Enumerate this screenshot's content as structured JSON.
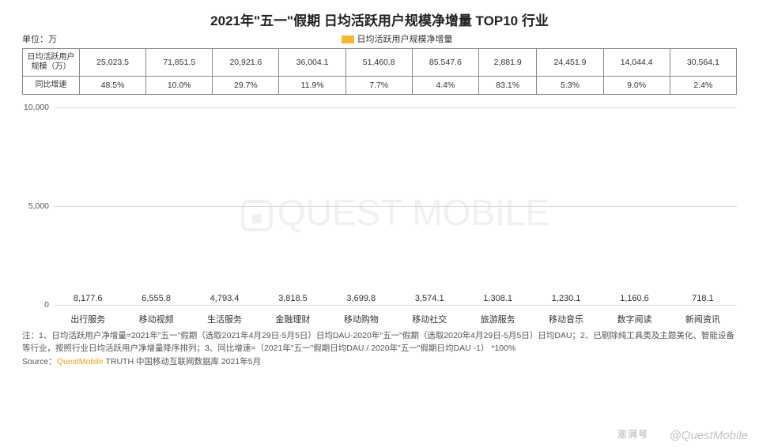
{
  "title": "2021年\"五一\"假期 日均活跃用户规模净增量 TOP10 行业",
  "unit_label": "单位：万",
  "legend_label": "日均活跃用户规模净增量",
  "table": {
    "row1_label": "日均活跃用户规模（万）",
    "row2_label": "同比增速",
    "row1": [
      "25,023.5",
      "71,851.5",
      "20,921.6",
      "36,004.1",
      "51,460.8",
      "85,547.6",
      "2,881.9",
      "24,451.9",
      "14,044.4",
      "30,564.1"
    ],
    "row2": [
      "48.5%",
      "10.0%",
      "29.7%",
      "11.9%",
      "7.7%",
      "4.4%",
      "83.1%",
      "5.3%",
      "9.0%",
      "2.4%"
    ],
    "row2_highlight_idx": [
      0,
      6
    ]
  },
  "chart": {
    "type": "bar",
    "categories": [
      "出行服务",
      "移动视频",
      "生活服务",
      "金融理财",
      "移动购物",
      "移动社交",
      "旅游服务",
      "移动音乐",
      "数字阅读",
      "新闻资讯"
    ],
    "values": [
      8177.6,
      6555.8,
      4793.4,
      3818.5,
      3699.8,
      3574.1,
      1308.1,
      1230.1,
      1160.6,
      718.1
    ],
    "value_labels": [
      "8,177.6",
      "6,555.8",
      "4,793.4",
      "3,818.5",
      "3,699.8",
      "3,574.1",
      "1,308.1",
      "1,230.1",
      "1,160.6",
      "718.1"
    ],
    "y_ticks": [
      0,
      5000,
      10000
    ],
    "y_tick_labels": [
      "0",
      "5,000",
      "10,000"
    ],
    "ymax": 10000,
    "bar_gradient_top": "#fbc638",
    "bar_gradient_bottom": "#f6a617",
    "grid_color": "#d9d9d9",
    "label_fontsize": 11,
    "value_fontsize": 11,
    "background_color": "#ffffff"
  },
  "watermark_text": "QUEST MOBILE",
  "footnote": "注：1、日均活跃用户净增量=2021年\"五一\"假期（选取2021年4月29日-5月5日）日均DAU-2020年\"五一\"假期（选取2020年4月29日-5月5日）日均DAU；2、已剔除纯工具类及主题美化、智能设备等行业，按照行业日均活跃用户净增量降序排列；3、同比增速=（2021年\"五一\"假期日均DAU / 2020年\"五一\"假期日均DAU -1） *100%",
  "source_prefix": "Source：",
  "source_brand": "QuestMobile",
  "source_suffix": " TRUTH 中国移动互联网数据库 2021年5月",
  "corner_wm1": "澎湃号",
  "corner_wm2": "@QuestMobile"
}
